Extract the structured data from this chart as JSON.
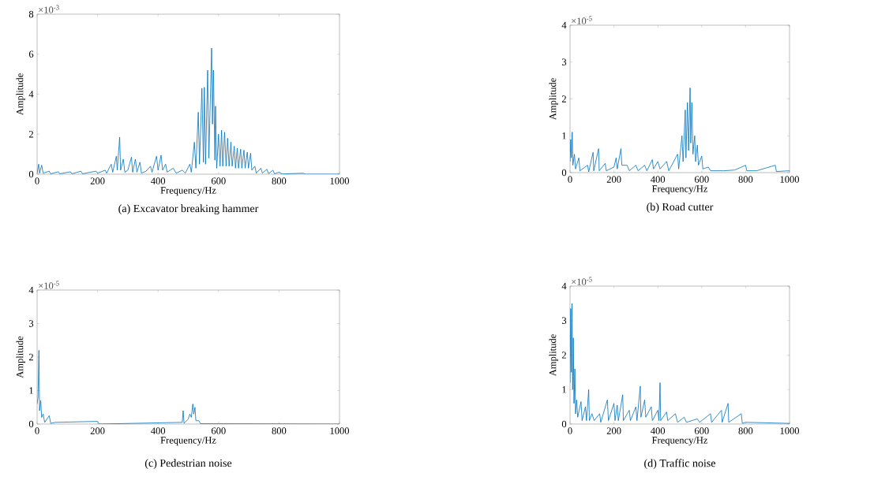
{
  "chart_data": [
    {
      "type": "line",
      "title": "(a) Excavator breaking hammer",
      "xlabel": "Frequency/Hz",
      "ylabel": "Amplitude",
      "annotations": [
        "×10$^{-3}$"
      ],
      "color": "#0072bd",
      "xlim": [
        0,
        1000
      ],
      "ylim": [
        0,
        8
      ],
      "xticks": [
        0,
        200,
        400,
        600,
        800,
        1000
      ],
      "yticks": [
        0,
        2,
        4,
        6,
        8
      ],
      "x": [
        0,
        5,
        8,
        15,
        20,
        40,
        45,
        70,
        75,
        110,
        115,
        145,
        150,
        195,
        200,
        225,
        230,
        245,
        250,
        262,
        265,
        273,
        276,
        285,
        290,
        300,
        312,
        316,
        325,
        330,
        340,
        345,
        360,
        375,
        380,
        395,
        400,
        410,
        415,
        425,
        430,
        450,
        460,
        480,
        490,
        505,
        510,
        520,
        525,
        533,
        537,
        545,
        550,
        553,
        557,
        564,
        568,
        577,
        580,
        583,
        588,
        590,
        594,
        600,
        605,
        610,
        614,
        620,
        625,
        630,
        635,
        641,
        645,
        652,
        656,
        662,
        666,
        673,
        677,
        684,
        688,
        695,
        699,
        706,
        710,
        720,
        725,
        740,
        745,
        760,
        765,
        780,
        785,
        800,
        810,
        880,
        885,
        1000
      ],
      "values": [
        0.05,
        0.5,
        0.05,
        0.45,
        0.05,
        0.15,
        0.02,
        0.12,
        0.02,
        0.12,
        0.02,
        0.15,
        0.02,
        0.15,
        0.05,
        0.2,
        0.05,
        0.5,
        0.1,
        0.9,
        0.2,
        1.85,
        0.2,
        0.75,
        0.1,
        0.2,
        0.85,
        0.1,
        0.75,
        0.1,
        0.6,
        0.05,
        0.15,
        0.4,
        0.1,
        0.9,
        0.2,
        0.95,
        0.2,
        0.5,
        0.1,
        0.3,
        0.05,
        0.2,
        0.05,
        0.5,
        0.1,
        1.6,
        0.3,
        3.1,
        0.5,
        4.3,
        0.6,
        4.35,
        0.5,
        5.2,
        0.8,
        6.3,
        2.5,
        5.2,
        0.7,
        3.4,
        0.3,
        2.0,
        0.4,
        2.2,
        0.4,
        2.1,
        0.4,
        1.8,
        0.4,
        1.6,
        0.4,
        1.4,
        0.3,
        1.3,
        0.3,
        1.25,
        0.3,
        1.2,
        0.3,
        1.1,
        0.3,
        1.05,
        0.2,
        0.4,
        0.05,
        0.3,
        0.05,
        0.25,
        0.03,
        0.2,
        0.02,
        0.1,
        0.01,
        0.05,
        0,
        0
      ]
    },
    {
      "type": "line",
      "title": "(b) Road cutter",
      "xlabel": "Frequency/Hz",
      "ylabel": "Amplitude",
      "annotations": [
        "×10$^{-5}$"
      ],
      "color": "#0072bd",
      "xlim": [
        0,
        1000
      ],
      "ylim": [
        0,
        4
      ],
      "xticks": [
        0,
        200,
        400,
        600,
        800,
        1000
      ],
      "yticks": [
        0,
        1,
        2,
        3,
        4
      ],
      "x": [
        0,
        3,
        6,
        10,
        13,
        20,
        25,
        40,
        45,
        80,
        85,
        105,
        108,
        130,
        133,
        160,
        165,
        200,
        210,
        215,
        232,
        236,
        260,
        270,
        300,
        310,
        340,
        350,
        375,
        380,
        400,
        410,
        440,
        450,
        490,
        495,
        510,
        515,
        525,
        528,
        535,
        540,
        547,
        550,
        555,
        560,
        568,
        572,
        580,
        585,
        600,
        605,
        630,
        640,
        700,
        750,
        800,
        805,
        850,
        935,
        940,
        1000
      ],
      "values": [
        0.3,
        0.9,
        0.4,
        1.1,
        0.2,
        0.5,
        0.1,
        0.4,
        0.05,
        0.2,
        0.02,
        0.55,
        0.05,
        0.65,
        0.05,
        0.25,
        0.05,
        0.15,
        0.4,
        0.1,
        0.65,
        0.2,
        0.2,
        0.05,
        0.2,
        0.05,
        0.2,
        0.05,
        0.35,
        0.1,
        0.3,
        0.1,
        0.3,
        0.05,
        0.5,
        0.1,
        1.0,
        0.3,
        1.7,
        0.4,
        1.9,
        0.6,
        2.3,
        0.8,
        1.9,
        0.5,
        1.0,
        0.3,
        0.75,
        0.2,
        0.45,
        0.1,
        0.15,
        0.05,
        0.05,
        0.07,
        0.2,
        0.05,
        0.05,
        0.2,
        0.03,
        0.05
      ]
    },
    {
      "type": "line",
      "title": "(c) Pedestrian noise",
      "xlabel": "Frequency/Hz",
      "ylabel": "Amplitude",
      "annotations": [
        "×10$^{-5}$"
      ],
      "color": "#0072bd",
      "xlim": [
        0,
        1000
      ],
      "ylim": [
        0,
        4
      ],
      "xticks": [
        0,
        200,
        400,
        600,
        800,
        1000
      ],
      "yticks": [
        0,
        1,
        2,
        3,
        4
      ],
      "x": [
        0,
        3,
        6,
        8,
        12,
        15,
        20,
        25,
        40,
        45,
        60,
        200,
        205,
        480,
        483,
        486,
        500,
        505,
        510,
        515,
        518,
        522,
        525,
        535,
        540,
        1000
      ],
      "values": [
        0.6,
        0.8,
        2.2,
        0.4,
        0.7,
        0.2,
        0.3,
        0.05,
        0.25,
        0.02,
        0.05,
        0.08,
        0,
        0.05,
        0.4,
        0.02,
        0.15,
        0.3,
        0.2,
        0.6,
        0.3,
        0.5,
        0.1,
        0.1,
        0.01,
        0
      ]
    },
    {
      "type": "line",
      "title": "(d) Traffic noise",
      "xlabel": "Frequency/Hz",
      "ylabel": "Amplitude",
      "annotations": [
        "×10$^{-5}$"
      ],
      "color": "#0072bd",
      "xlim": [
        0,
        1000
      ],
      "ylim": [
        0,
        4
      ],
      "xticks": [
        0,
        200,
        400,
        600,
        800,
        1000
      ],
      "yticks": [
        0,
        1,
        2,
        3,
        4
      ],
      "x": [
        0,
        3,
        6,
        9,
        12,
        15,
        18,
        22,
        25,
        30,
        35,
        50,
        55,
        70,
        75,
        85,
        88,
        100,
        110,
        135,
        140,
        170,
        175,
        200,
        205,
        215,
        220,
        240,
        243,
        270,
        275,
        300,
        305,
        320,
        323,
        340,
        345,
        370,
        375,
        400,
        405,
        410,
        413,
        440,
        445,
        480,
        490,
        520,
        530,
        580,
        590,
        640,
        645,
        690,
        693,
        720,
        723,
        780,
        785,
        800,
        1000
      ],
      "values": [
        1.2,
        3.35,
        1.5,
        3.5,
        1.0,
        2.5,
        0.6,
        1.6,
        0.3,
        0.7,
        0.2,
        0.65,
        0.1,
        0.5,
        0.1,
        1.0,
        0.1,
        0.3,
        0.1,
        0.3,
        0.05,
        0.7,
        0.1,
        0.6,
        0.1,
        0.55,
        0.1,
        0.85,
        0.1,
        0.4,
        0.1,
        0.5,
        0.1,
        1.1,
        0.2,
        0.7,
        0.2,
        0.5,
        0.1,
        0.4,
        0.1,
        1.2,
        0.1,
        0.35,
        0.1,
        0.3,
        0.05,
        0.2,
        0.05,
        0.15,
        0.05,
        0.3,
        0.05,
        0.4,
        0.05,
        0.6,
        0.05,
        0.3,
        0.02,
        0.05,
        0.02
      ]
    }
  ]
}
